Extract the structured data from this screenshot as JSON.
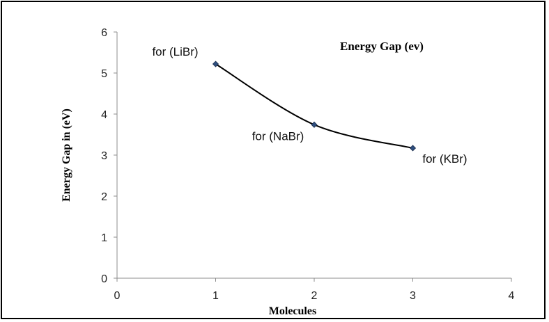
{
  "chart_data": {
    "type": "scatter",
    "title": "Energy Gap  (ev)",
    "xlabel": "Molecules",
    "ylabel": "Energy Gap in (eV)",
    "xlim": [
      0,
      4
    ],
    "ylim": [
      0,
      6
    ],
    "xticks": [
      0,
      1,
      2,
      3,
      4
    ],
    "yticks": [
      0,
      1,
      2,
      3,
      4,
      5,
      6
    ],
    "grid": false,
    "legend": "none",
    "line_style": "smooth",
    "series_color": "#000000",
    "marker_color": "#2f4f7f",
    "series": [
      {
        "x": [
          1,
          2,
          3
        ],
        "y": [
          5.22,
          3.74,
          3.17
        ],
        "labels": [
          "for (LiBr)",
          "for (NaBr)",
          "for (KBr)"
        ]
      }
    ]
  }
}
